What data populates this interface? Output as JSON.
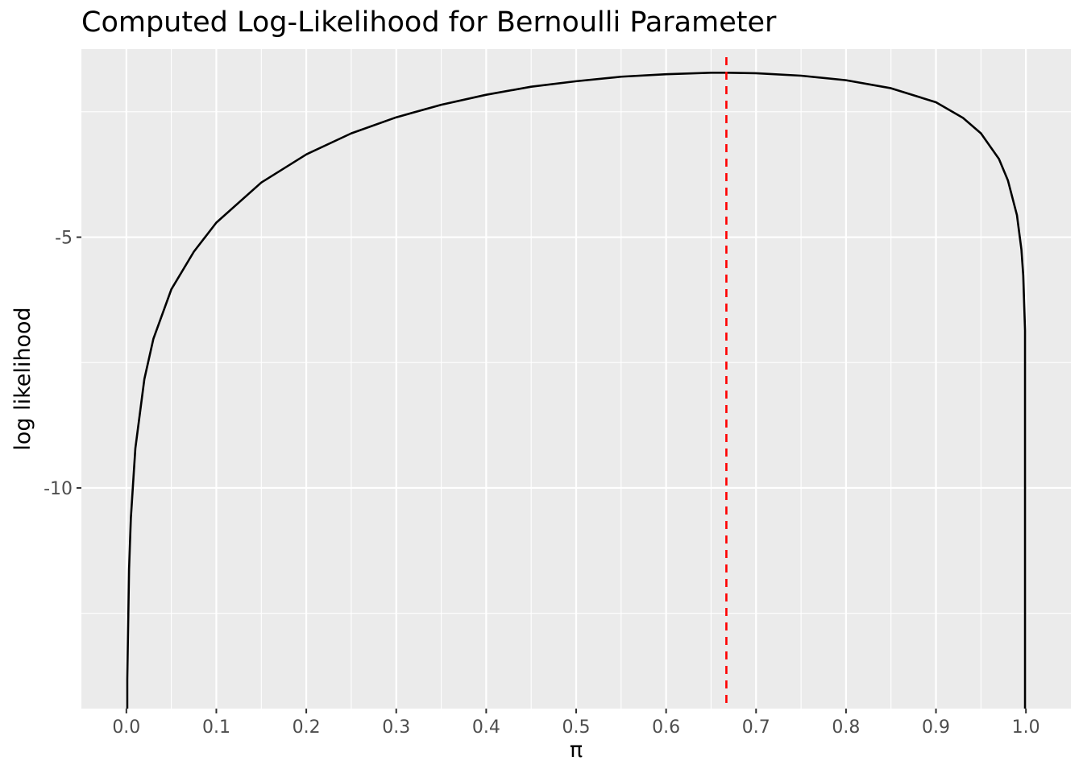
{
  "chart_data": {
    "type": "line",
    "title": "Computed Log-Likelihood for Bernoulli Parameter",
    "xlabel": "π",
    "ylabel": "log likelihood",
    "xlim": [
      -0.05,
      1.05
    ],
    "ylim": [
      -14.4,
      -1.25
    ],
    "x_ticks": [
      0.0,
      0.1,
      0.2,
      0.3,
      0.4,
      0.5,
      0.6,
      0.7,
      0.8,
      0.9,
      1.0
    ],
    "x_tick_labels": [
      "0.0",
      "0.1",
      "0.2",
      "0.3",
      "0.4",
      "0.5",
      "0.6",
      "0.7",
      "0.8",
      "0.9",
      "1.0"
    ],
    "y_ticks": [
      -5,
      -10
    ],
    "y_tick_labels": [
      "-5",
      "-10"
    ],
    "grid": true,
    "series": [
      {
        "x": [
          0.001,
          0.003,
          0.005,
          0.01,
          0.02,
          0.03,
          0.05,
          0.075,
          0.1,
          0.15,
          0.2,
          0.25,
          0.3,
          0.35,
          0.4,
          0.45,
          0.5,
          0.55,
          0.6,
          0.65,
          0.667,
          0.7,
          0.75,
          0.8,
          0.85,
          0.9,
          0.93,
          0.95,
          0.97,
          0.98,
          0.99,
          0.995,
          0.997,
          0.999
        ],
        "y": [
          -13.82,
          -11.62,
          -10.6,
          -9.21,
          -7.83,
          -7.03,
          -6.04,
          -5.29,
          -4.71,
          -3.91,
          -3.35,
          -2.93,
          -2.61,
          -2.36,
          -2.16,
          -2.0,
          -1.89,
          -1.8,
          -1.75,
          -1.72,
          -1.72,
          -1.73,
          -1.78,
          -1.87,
          -2.03,
          -2.31,
          -2.62,
          -2.93,
          -3.44,
          -3.87,
          -4.56,
          -5.25,
          -5.76,
          -6.86
        ],
        "color": "#000000"
      }
    ],
    "reference_line": {
      "orientation": "vertical",
      "x": 0.667,
      "color": "#ff0000",
      "style": "dashed"
    }
  }
}
